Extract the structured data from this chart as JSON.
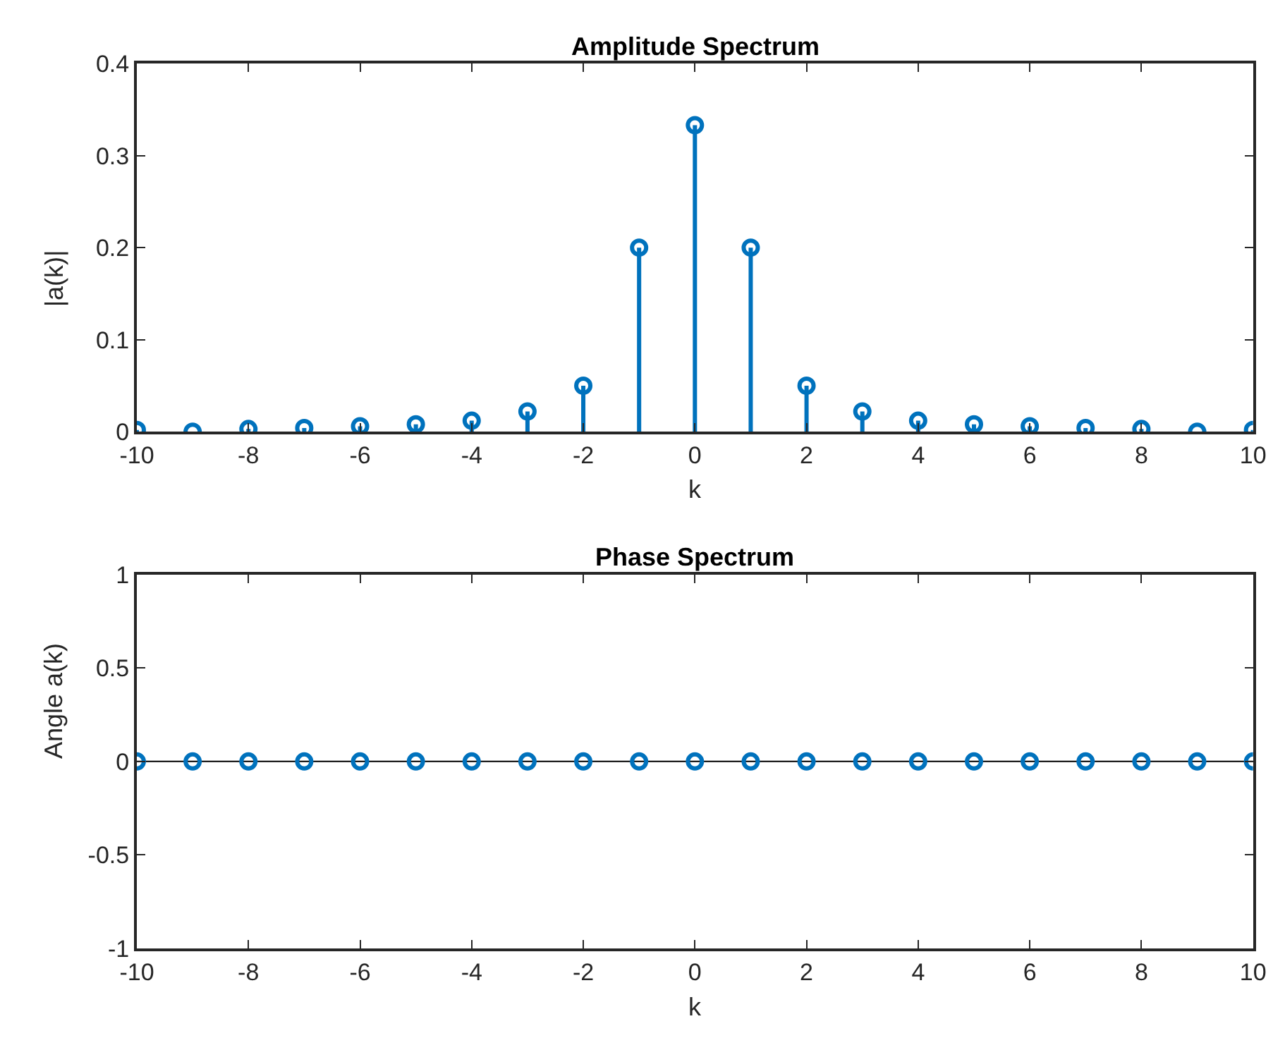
{
  "chart_data": [
    {
      "type": "lollipop",
      "title": "Amplitude Spectrum",
      "xlabel": "k",
      "ylabel": "|a(k)|",
      "marker": "circle",
      "x": [
        -10,
        -9,
        -8,
        -7,
        -6,
        -5,
        -4,
        -3,
        -2,
        -1,
        0,
        1,
        2,
        3,
        4,
        5,
        6,
        7,
        8,
        9,
        10
      ],
      "series": [
        {
          "color": "#0072bd",
          "values": [
            0.002,
            0.0,
            0.003,
            0.004,
            0.006,
            0.008,
            0.012,
            0.022,
            0.05,
            0.2,
            0.333,
            0.2,
            0.05,
            0.022,
            0.012,
            0.008,
            0.006,
            0.004,
            0.003,
            0.0,
            0.002
          ]
        }
      ],
      "xlim": [
        -10,
        10
      ],
      "xticks": [
        -10,
        -8,
        -6,
        -4,
        -2,
        0,
        2,
        4,
        6,
        8,
        10
      ],
      "ylim": [
        0,
        0.4
      ],
      "yticks": [
        0,
        0.1,
        0.2,
        0.3,
        0.4
      ]
    },
    {
      "type": "lollipop",
      "title": "Phase Spectrum",
      "xlabel": "k",
      "ylabel": "Angle a(k)",
      "marker": "circle",
      "x": [
        -10,
        -9,
        -8,
        -7,
        -6,
        -5,
        -4,
        -3,
        -2,
        -1,
        0,
        1,
        2,
        3,
        4,
        5,
        6,
        7,
        8,
        9,
        10
      ],
      "series": [
        {
          "color": "#0072bd",
          "values": [
            0,
            0,
            0,
            0,
            0,
            0,
            0,
            0,
            0,
            0,
            0,
            0,
            0,
            0,
            0,
            0,
            0,
            0,
            0,
            0,
            0
          ]
        }
      ],
      "ref_lines": [
        {
          "axis": "y",
          "value": 0,
          "color": "#000000"
        }
      ],
      "xlim": [
        -10,
        10
      ],
      "xticks": [
        -10,
        -8,
        -6,
        -4,
        -2,
        0,
        2,
        4,
        6,
        8,
        10
      ],
      "ylim": [
        -1,
        1
      ],
      "yticks": [
        -1,
        -0.5,
        0,
        0.5,
        1
      ]
    }
  ]
}
